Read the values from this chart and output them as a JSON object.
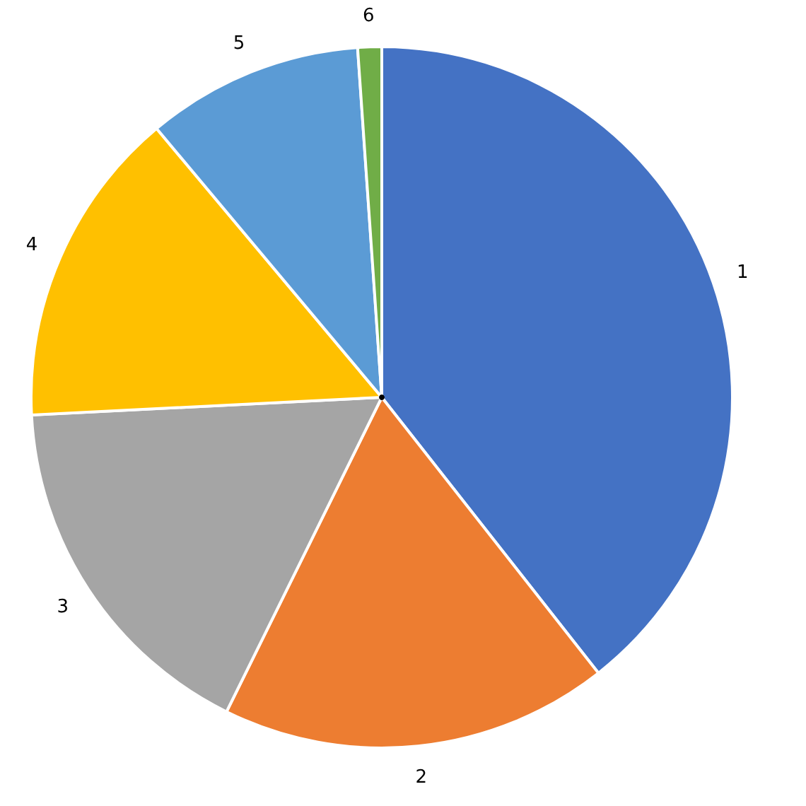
{
  "chart_data": {
    "type": "pie",
    "categories": [
      "1",
      "2",
      "3",
      "4",
      "5",
      "6"
    ],
    "values": [
      39.4,
      17.9,
      16.9,
      14.7,
      10.0,
      1.1
    ],
    "colors": [
      "#4472c4",
      "#ed7d31",
      "#a5a5a5",
      "#ffc000",
      "#5b9bd5",
      "#70ad47"
    ],
    "legend": false
  }
}
